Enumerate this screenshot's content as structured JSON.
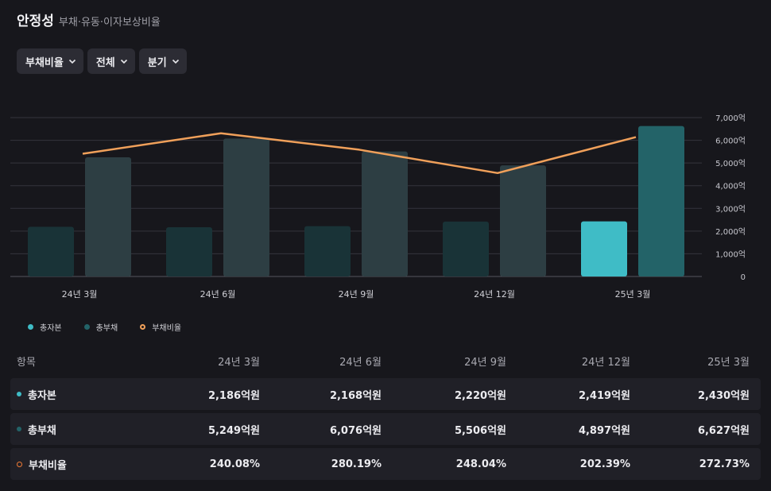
{
  "header": {
    "title": "안정성",
    "subtitle": "부채·유동·이자보상비율"
  },
  "filters": [
    {
      "label": "부채비율"
    },
    {
      "label": "전체"
    },
    {
      "label": "분기"
    }
  ],
  "colors": {
    "equity": "#3fbcc6",
    "liabilities": "#236368",
    "ratio": "#f0a05a",
    "bg": "#17171c"
  },
  "chart_data": {
    "type": "bar",
    "categories": [
      "24년 3월",
      "24년 6월",
      "24년 9월",
      "24년 12월",
      "25년 3월"
    ],
    "series": [
      {
        "name": "총자본",
        "type": "bar",
        "values": [
          2186,
          2168,
          2220,
          2419,
          2430
        ]
      },
      {
        "name": "총부채",
        "type": "bar",
        "values": [
          5249,
          6076,
          5506,
          4897,
          6627
        ]
      },
      {
        "name": "부채비율",
        "type": "line",
        "values": [
          240.08,
          280.19,
          248.04,
          202.39,
          272.73
        ]
      }
    ],
    "y_ticks": [
      "7,000억",
      "6,000억",
      "5,000억",
      "4,000억",
      "3,000억",
      "2,000억",
      "1,000억",
      "0"
    ],
    "ylim": [
      0,
      7000
    ],
    "y_axis_side": "right",
    "highlighted_category": "25년 3월",
    "grid": true,
    "legend_position": "bottom-left"
  },
  "legend": [
    {
      "label": "총자본",
      "icon": "filled-dot"
    },
    {
      "label": "총부채",
      "icon": "filled-dot"
    },
    {
      "label": "부채비율",
      "icon": "ring"
    }
  ],
  "table": {
    "header": [
      "항목",
      "24년 3월",
      "24년 6월",
      "24년 9월",
      "24년 12월",
      "25년 3월"
    ],
    "rows": [
      {
        "label": "총자본",
        "icon": "filled-dot",
        "values": [
          "2,186억원",
          "2,168억원",
          "2,220억원",
          "2,419억원",
          "2,430억원"
        ]
      },
      {
        "label": "총부채",
        "icon": "filled-dot",
        "values": [
          "5,249억원",
          "6,076억원",
          "5,506억원",
          "4,897억원",
          "6,627억원"
        ]
      },
      {
        "label": "부채비율",
        "icon": "ring",
        "values": [
          "240.08%",
          "280.19%",
          "248.04%",
          "202.39%",
          "272.73%"
        ]
      }
    ]
  }
}
